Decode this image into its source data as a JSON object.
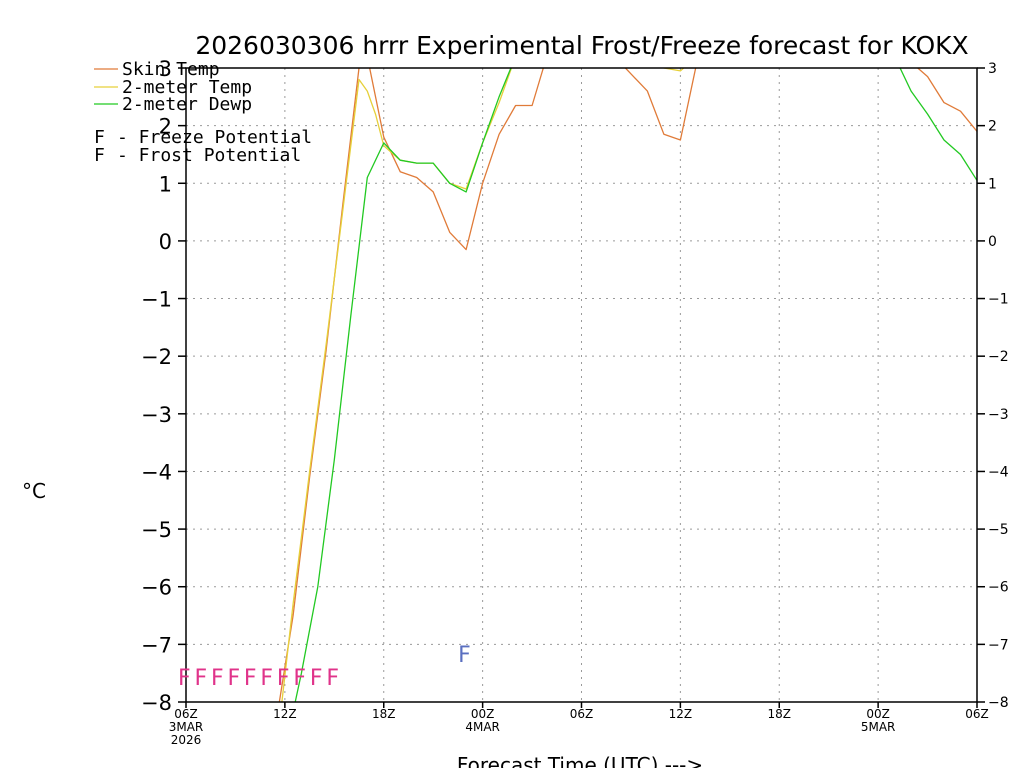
{
  "chart_data": {
    "type": "line",
    "title": "2026030306 hrrr Experimental Frost/Freeze forecast for KOKX",
    "ylabel": "°C",
    "xlabel": "Forecast Time (UTC) --->",
    "ylim": [
      -8,
      3
    ],
    "xlim": [
      0,
      48
    ],
    "grid": true,
    "yticks": [
      -8,
      -7,
      -6,
      -5,
      -4,
      -3,
      -2,
      -1,
      0,
      1,
      2,
      3
    ],
    "xticks": [
      {
        "x": 0,
        "label": "06Z",
        "sub": [
          "3MAR",
          "2026"
        ]
      },
      {
        "x": 6,
        "label": "12Z",
        "sub": []
      },
      {
        "x": 12,
        "label": "18Z",
        "sub": []
      },
      {
        "x": 18,
        "label": "00Z",
        "sub": [
          "4MAR"
        ]
      },
      {
        "x": 24,
        "label": "06Z",
        "sub": []
      },
      {
        "x": 30,
        "label": "12Z",
        "sub": []
      },
      {
        "x": 36,
        "label": "18Z",
        "sub": []
      },
      {
        "x": 42,
        "label": "00Z",
        "sub": [
          "5MAR"
        ]
      },
      {
        "x": 48,
        "label": "06Z",
        "sub": []
      }
    ],
    "series": [
      {
        "name": "Skin Temp",
        "color": "#e07b39",
        "x": [
          5.5,
          6.5,
          7.5,
          8.5,
          9.5,
          10.5,
          11.0,
          12.0,
          13.0,
          14.0,
          15.0,
          16.0,
          17.0,
          18.0,
          19.0,
          20.0,
          21.0,
          22.0,
          23.0,
          24.0,
          25.0,
          26.0,
          27.0,
          28.0,
          29.0,
          30.0,
          31.0,
          44.0,
          45.0,
          46.0,
          47.0,
          48.0
        ],
        "y": [
          -8.3,
          -6.5,
          -4.1,
          -1.9,
          0.6,
          3.0,
          3.2,
          1.8,
          1.2,
          1.1,
          0.85,
          0.15,
          -0.15,
          1.0,
          1.85,
          2.35,
          2.35,
          3.3,
          3.5,
          3.5,
          3.5,
          3.2,
          2.9,
          2.6,
          1.85,
          1.75,
          3.1,
          3.1,
          2.85,
          2.4,
          2.25,
          1.9
        ]
      },
      {
        "name": "2-meter Temp",
        "color": "#e6d03a",
        "x": [
          5.7,
          6.5,
          7.5,
          8.5,
          9.5,
          10.5,
          11.0,
          11.5,
          12.0,
          13.0,
          14.0,
          15.0,
          16.0,
          17.0,
          18.0,
          19.0,
          20.0,
          28.0,
          29.0,
          30.0,
          31.0
        ],
        "y": [
          -8.3,
          -6.3,
          -4.0,
          -1.8,
          0.5,
          2.8,
          2.6,
          2.2,
          1.65,
          1.4,
          1.35,
          1.35,
          1.0,
          0.9,
          1.7,
          2.4,
          3.2,
          3.2,
          3.0,
          2.95,
          3.2
        ]
      },
      {
        "name": "2-meter Dewp",
        "color": "#22c922",
        "x": [
          6.4,
          7.0,
          8.0,
          9.0,
          10.0,
          11.0,
          12.0,
          13.0,
          14.0,
          15.0,
          16.0,
          17.0,
          18.0,
          19.0,
          20.0,
          43.0,
          44.0,
          45.0,
          46.0,
          47.0,
          48.0
        ],
        "y": [
          -8.3,
          -7.5,
          -6.0,
          -3.8,
          -1.3,
          1.1,
          1.7,
          1.4,
          1.35,
          1.35,
          1.0,
          0.85,
          1.7,
          2.5,
          3.2,
          3.2,
          2.6,
          2.2,
          1.75,
          1.5,
          1.05
        ]
      }
    ],
    "markers": [
      {
        "label": "F",
        "kind": "Freeze Potential",
        "color": "#e0338a",
        "x": [
          0,
          1,
          2,
          3,
          4,
          5,
          6,
          7,
          8,
          9
        ],
        "y": -7.55
      },
      {
        "label": "F",
        "kind": "Frost Potential",
        "color": "#5a6fc0",
        "x": [
          17
        ],
        "y": -7.15
      }
    ],
    "legend": {
      "placement": "top-left",
      "lines": [
        "Skin Temp",
        "2-meter Temp",
        "2-meter Dewp"
      ],
      "potentials": [
        {
          "letter": "F",
          "text": "- Freeze Potential",
          "color": "#e0338a"
        },
        {
          "letter": "F",
          "text": "- Frost Potential",
          "color": "#5a6fc0"
        }
      ]
    }
  }
}
